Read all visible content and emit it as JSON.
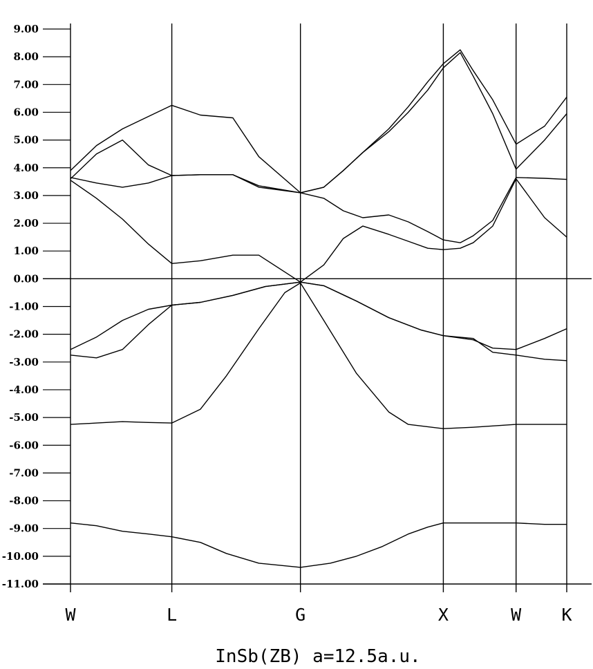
{
  "chart_data": {
    "type": "line",
    "title": "InSb(ZB) a=12.5a.u.",
    "xlabel": "",
    "ylabel": "",
    "ylim": [
      -11,
      9
    ],
    "yticks": [
      "9.00",
      "8.00",
      "7.00",
      "6.00",
      "5.00",
      "4.00",
      "3.00",
      "2.00",
      "1.00",
      "0.00",
      "-1.00",
      "-2.00",
      "-3.00",
      "-4.00",
      "-5.00",
      "-6.00",
      "-7.00",
      "-8.00",
      "-9.00",
      "-10.00",
      "-11.00"
    ],
    "xlim": [
      0,
      3.9
    ],
    "kpoints": [
      {
        "label": "W",
        "x": 0
      },
      {
        "label": "L",
        "x": 0.78
      },
      {
        "label": "G",
        "x": 1.77
      },
      {
        "label": "X",
        "x": 2.87
      },
      {
        "label": "W",
        "x": 3.43
      },
      {
        "label": "K",
        "x": 3.82
      }
    ],
    "fermi_level": 0,
    "grid": false,
    "series": [
      {
        "values": [
          [
            0,
            -8.8
          ],
          [
            0.2,
            -8.9
          ],
          [
            0.4,
            -9.1
          ],
          [
            0.6,
            -9.2
          ],
          [
            0.78,
            -9.3
          ],
          [
            1.0,
            -9.5
          ],
          [
            1.2,
            -9.9
          ],
          [
            1.45,
            -10.25
          ],
          [
            1.77,
            -10.4
          ],
          [
            2.0,
            -10.25
          ],
          [
            2.2,
            -10.0
          ],
          [
            2.4,
            -9.65
          ],
          [
            2.6,
            -9.2
          ],
          [
            2.75,
            -8.95
          ],
          [
            2.87,
            -8.8
          ],
          [
            3.1,
            -8.8
          ],
          [
            3.43,
            -8.8
          ],
          [
            3.65,
            -8.85
          ],
          [
            3.82,
            -8.85
          ]
        ]
      },
      {
        "values": [
          [
            0,
            -5.25
          ],
          [
            0.2,
            -5.2
          ],
          [
            0.4,
            -5.15
          ],
          [
            0.6,
            -5.18
          ],
          [
            0.78,
            -5.2
          ],
          [
            1.0,
            -4.7
          ],
          [
            1.2,
            -3.5
          ],
          [
            1.45,
            -1.8
          ],
          [
            1.65,
            -0.5
          ],
          [
            1.77,
            -0.15
          ],
          [
            1.95,
            -1.5
          ],
          [
            2.2,
            -3.4
          ],
          [
            2.45,
            -4.8
          ],
          [
            2.6,
            -5.25
          ],
          [
            2.87,
            -5.4
          ],
          [
            3.1,
            -5.35
          ],
          [
            3.43,
            -5.25
          ],
          [
            3.65,
            -5.25
          ],
          [
            3.82,
            -5.25
          ]
        ]
      },
      {
        "values": [
          [
            0,
            -2.75
          ],
          [
            0.2,
            -2.85
          ],
          [
            0.4,
            -2.55
          ],
          [
            0.6,
            -1.65
          ],
          [
            0.78,
            -0.95
          ],
          [
            1.0,
            -0.85
          ],
          [
            1.25,
            -0.6
          ],
          [
            1.5,
            -0.28
          ],
          [
            1.77,
            -0.12
          ],
          [
            1.95,
            -0.25
          ],
          [
            2.2,
            -0.8
          ],
          [
            2.45,
            -1.4
          ],
          [
            2.7,
            -1.85
          ],
          [
            2.87,
            -2.05
          ],
          [
            3.1,
            -2.2
          ],
          [
            3.25,
            -2.5
          ],
          [
            3.43,
            -2.55
          ],
          [
            3.65,
            -2.15
          ],
          [
            3.82,
            -1.8
          ]
        ]
      },
      {
        "values": [
          [
            0,
            -2.55
          ],
          [
            0.2,
            -2.1
          ],
          [
            0.4,
            -1.5
          ],
          [
            0.6,
            -1.1
          ],
          [
            0.78,
            -0.95
          ],
          [
            1.0,
            -0.85
          ],
          [
            1.25,
            -0.6
          ],
          [
            1.5,
            -0.28
          ],
          [
            1.77,
            -0.12
          ],
          [
            1.95,
            -0.25
          ],
          [
            2.2,
            -0.8
          ],
          [
            2.45,
            -1.4
          ],
          [
            2.7,
            -1.85
          ],
          [
            2.87,
            -2.05
          ],
          [
            3.1,
            -2.15
          ],
          [
            3.25,
            -2.65
          ],
          [
            3.43,
            -2.75
          ],
          [
            3.65,
            -2.9
          ],
          [
            3.82,
            -2.95
          ]
        ]
      },
      {
        "values": [
          [
            0,
            3.55
          ],
          [
            0.2,
            2.9
          ],
          [
            0.4,
            2.15
          ],
          [
            0.6,
            1.25
          ],
          [
            0.78,
            0.55
          ],
          [
            1.0,
            0.65
          ],
          [
            1.25,
            0.85
          ],
          [
            1.45,
            0.85
          ],
          [
            1.77,
            -0.12
          ],
          [
            1.95,
            0.5
          ],
          [
            2.1,
            1.45
          ],
          [
            2.25,
            1.9
          ],
          [
            2.45,
            1.6
          ],
          [
            2.6,
            1.35
          ],
          [
            2.75,
            1.1
          ],
          [
            2.87,
            1.05
          ],
          [
            3.0,
            1.1
          ],
          [
            3.1,
            1.3
          ],
          [
            3.25,
            1.9
          ],
          [
            3.43,
            3.6
          ],
          [
            3.65,
            2.2
          ],
          [
            3.82,
            1.5
          ]
        ]
      },
      {
        "values": [
          [
            0,
            3.65
          ],
          [
            0.2,
            3.45
          ],
          [
            0.4,
            3.3
          ],
          [
            0.6,
            3.45
          ],
          [
            0.78,
            3.72
          ],
          [
            1.0,
            3.75
          ],
          [
            1.25,
            3.75
          ],
          [
            1.45,
            3.35
          ],
          [
            1.77,
            3.1
          ],
          [
            1.95,
            2.9
          ],
          [
            2.1,
            2.45
          ],
          [
            2.25,
            2.2
          ],
          [
            2.45,
            2.3
          ],
          [
            2.6,
            2.05
          ],
          [
            2.75,
            1.7
          ],
          [
            2.87,
            1.4
          ],
          [
            3.0,
            1.3
          ],
          [
            3.1,
            1.55
          ],
          [
            3.25,
            2.1
          ],
          [
            3.43,
            3.65
          ],
          [
            3.65,
            3.62
          ],
          [
            3.82,
            3.58
          ]
        ]
      },
      {
        "values": [
          [
            0,
            3.6
          ],
          [
            0.2,
            4.5
          ],
          [
            0.4,
            5.0
          ],
          [
            0.6,
            4.1
          ],
          [
            0.78,
            3.72
          ],
          [
            1.0,
            3.75
          ],
          [
            1.25,
            3.75
          ],
          [
            1.45,
            3.3
          ],
          [
            1.77,
            3.1
          ],
          [
            1.95,
            3.3
          ],
          [
            2.1,
            3.9
          ],
          [
            2.25,
            4.55
          ],
          [
            2.45,
            5.3
          ],
          [
            2.6,
            6.0
          ],
          [
            2.75,
            6.8
          ],
          [
            2.87,
            7.6
          ],
          [
            3.0,
            8.15
          ],
          [
            3.1,
            7.3
          ],
          [
            3.25,
            5.95
          ],
          [
            3.43,
            3.95
          ],
          [
            3.65,
            5.0
          ],
          [
            3.82,
            5.95
          ]
        ]
      },
      {
        "values": [
          [
            0,
            3.9
          ],
          [
            0.2,
            4.8
          ],
          [
            0.4,
            5.4
          ],
          [
            0.6,
            5.85
          ],
          [
            0.78,
            6.25
          ],
          [
            1.0,
            5.9
          ],
          [
            1.25,
            5.8
          ],
          [
            1.45,
            4.4
          ],
          [
            1.77,
            3.1
          ],
          [
            1.95,
            3.3
          ],
          [
            2.1,
            3.9
          ],
          [
            2.25,
            4.55
          ],
          [
            2.45,
            5.4
          ],
          [
            2.6,
            6.2
          ],
          [
            2.75,
            7.1
          ],
          [
            2.87,
            7.75
          ],
          [
            3.0,
            8.25
          ],
          [
            3.1,
            7.5
          ],
          [
            3.25,
            6.45
          ],
          [
            3.43,
            4.85
          ],
          [
            3.65,
            5.5
          ],
          [
            3.82,
            6.55
          ]
        ]
      }
    ]
  }
}
